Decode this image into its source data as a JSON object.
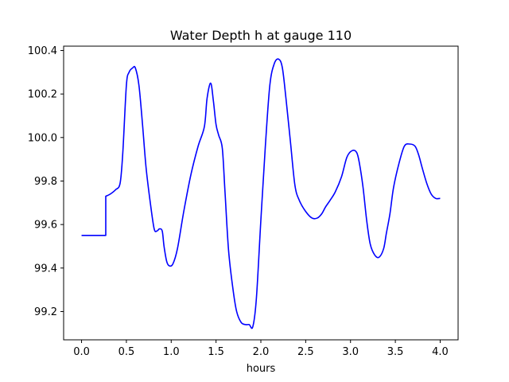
{
  "chart_data": {
    "type": "line",
    "title": "Water Depth h at gauge 110",
    "xlabel": "hours",
    "ylabel": "",
    "xlim": [
      -0.2,
      4.2
    ],
    "ylim": [
      99.07,
      100.42
    ],
    "x_ticks": [
      0.0,
      0.5,
      1.0,
      1.5,
      2.0,
      2.5,
      3.0,
      3.5,
      4.0
    ],
    "x_tick_labels": [
      "0.0",
      "0.5",
      "1.0",
      "1.5",
      "2.0",
      "2.5",
      "3.0",
      "3.5",
      "4.0"
    ],
    "y_ticks": [
      99.2,
      99.4,
      99.6,
      99.8,
      100.0,
      100.2,
      100.4
    ],
    "y_tick_labels": [
      "99.2",
      "99.4",
      "99.6",
      "99.8",
      "100.0",
      "100.2",
      "100.4"
    ],
    "grid": false,
    "series": [
      {
        "color": "#0000ff",
        "x": [
          0.0,
          0.27,
          0.27,
          0.32,
          0.38,
          0.43,
          0.46,
          0.5,
          0.53,
          0.57,
          0.6,
          0.64,
          0.68,
          0.72,
          0.77,
          0.81,
          0.84,
          0.87,
          0.9,
          0.92,
          0.95,
          0.98,
          1.02,
          1.07,
          1.14,
          1.22,
          1.3,
          1.37,
          1.4,
          1.44,
          1.47,
          1.5,
          1.53,
          1.57,
          1.6,
          1.64,
          1.69,
          1.73,
          1.78,
          1.83,
          1.87,
          1.91,
          1.95,
          2.0,
          2.05,
          2.1,
          2.15,
          2.2,
          2.24,
          2.28,
          2.33,
          2.38,
          2.43,
          2.5,
          2.57,
          2.63,
          2.68,
          2.72,
          2.77,
          2.83,
          2.9,
          2.96,
          3.02,
          3.07,
          3.1,
          3.14,
          3.18,
          3.22,
          3.27,
          3.32,
          3.37,
          3.4,
          3.44,
          3.48,
          3.54,
          3.6,
          3.66,
          3.72,
          3.76,
          3.8,
          3.85,
          3.9,
          3.95,
          4.0
        ],
        "y": [
          99.55,
          99.55,
          99.73,
          99.74,
          99.76,
          99.79,
          99.93,
          100.24,
          100.3,
          100.32,
          100.32,
          100.24,
          100.06,
          99.86,
          99.69,
          99.58,
          99.57,
          99.58,
          99.57,
          99.5,
          99.43,
          99.41,
          99.42,
          99.49,
          99.66,
          99.83,
          99.96,
          100.05,
          100.18,
          100.25,
          100.17,
          100.06,
          100.01,
          99.95,
          99.75,
          99.48,
          99.3,
          99.2,
          99.15,
          99.14,
          99.14,
          99.13,
          99.26,
          99.62,
          99.96,
          100.24,
          100.34,
          100.36,
          100.32,
          100.18,
          99.98,
          99.78,
          99.71,
          99.66,
          99.63,
          99.63,
          99.65,
          99.68,
          99.71,
          99.75,
          99.82,
          99.91,
          99.94,
          99.93,
          99.88,
          99.77,
          99.62,
          99.51,
          99.46,
          99.45,
          99.49,
          99.56,
          99.65,
          99.77,
          99.88,
          99.96,
          99.97,
          99.96,
          99.92,
          99.86,
          99.79,
          99.74,
          99.72,
          99.72
        ]
      }
    ]
  }
}
